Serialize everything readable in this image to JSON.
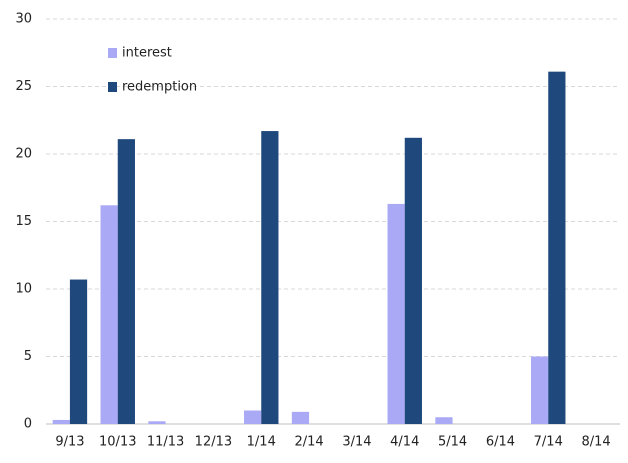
{
  "chart_data": {
    "type": "bar",
    "categories": [
      "9/13",
      "10/13",
      "11/13",
      "12/13",
      "1/14",
      "2/14",
      "3/14",
      "4/14",
      "5/14",
      "6/14",
      "7/14",
      "8/14"
    ],
    "series": [
      {
        "name": "interest",
        "color": "#a9a9f5",
        "values": [
          0.3,
          16.2,
          0.2,
          0,
          1.0,
          0.9,
          0,
          16.3,
          0.5,
          0,
          5.0,
          0
        ]
      },
      {
        "name": "redemption",
        "color": "#1f497d",
        "values": [
          10.7,
          21.1,
          0,
          0,
          21.7,
          0,
          0,
          21.2,
          0,
          0,
          26.1,
          0
        ]
      }
    ],
    "ylim": [
      0,
      30
    ],
    "yticks": [
      0,
      5,
      10,
      15,
      20,
      25,
      30
    ],
    "grid": true,
    "legend": "top-left"
  }
}
